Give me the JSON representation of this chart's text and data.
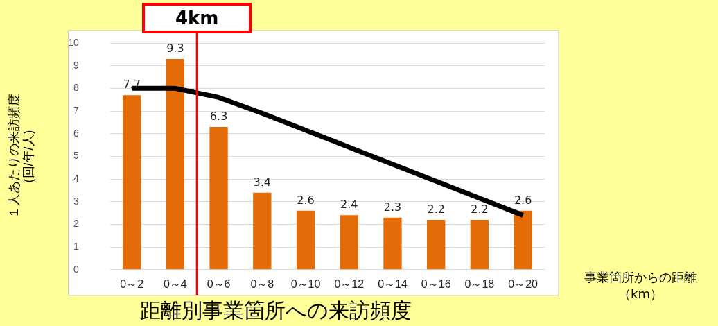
{
  "chart_data": {
    "type": "bar",
    "title": "距離別事業箇所への来訪頻度",
    "ylabel": "１人あたりの来訪頻度\n(回/年/人)",
    "xlabel": "事業箇所からの距離（km）",
    "categories": [
      "0～2",
      "0～4",
      "0～6",
      "0～8",
      "0～10",
      "0～12",
      "0～14",
      "0～16",
      "0～18",
      "0～20"
    ],
    "series": [
      {
        "color": "#e36c09",
        "values": [
          7.7,
          9.3,
          6.3,
          3.4,
          2.6,
          2.4,
          2.3,
          2.2,
          2.2,
          2.6
        ],
        "value_labels": [
          "7.7",
          "9.3",
          "6.3",
          "3.4",
          "2.6",
          "2.4",
          "2.3",
          "2.2",
          "2.2",
          "2.6"
        ]
      },
      {
        "type": "line",
        "color": "#000000",
        "values": [
          8,
          8,
          7.6,
          6.9,
          6.15,
          5.4,
          4.65,
          3.9,
          3.15,
          2.4
        ]
      }
    ],
    "ylim": [
      0,
      10
    ],
    "yticks": [
      0,
      1,
      2,
      3,
      4,
      5,
      6,
      7,
      8,
      9,
      10
    ],
    "grid": "y",
    "legend": false,
    "ref_lines": [
      {
        "axis": "x",
        "value": "0～4",
        "label": "4km",
        "color": "#ff0000"
      }
    ]
  }
}
